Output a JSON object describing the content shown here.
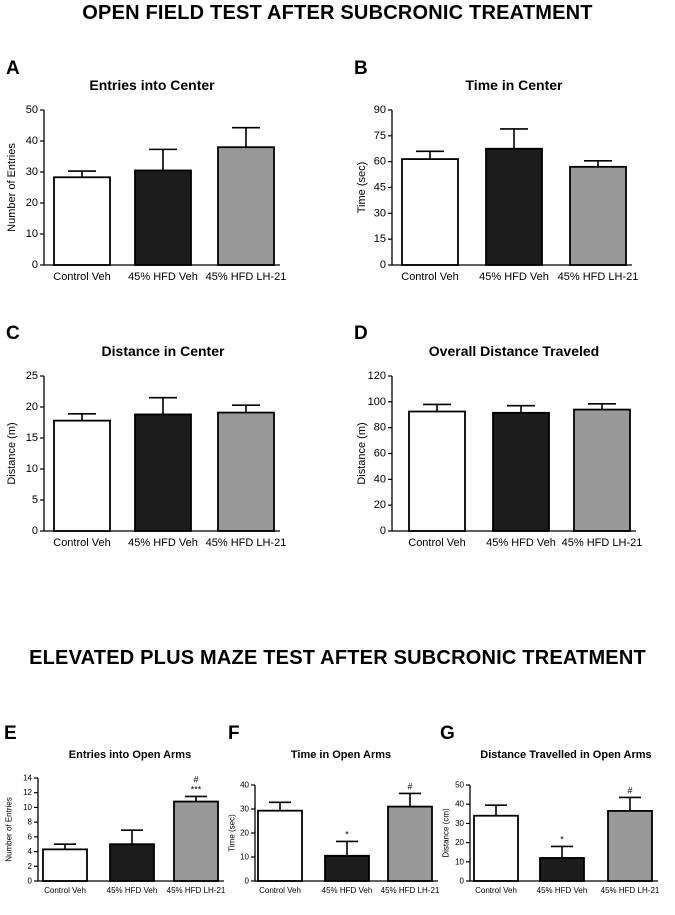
{
  "sections": {
    "open_field_title": "OPEN FIELD TEST AFTER SUBCRONIC TREATMENT",
    "plus_maze_title": "ELEVATED PLUS MAZE TEST AFTER SUBCRONIC TREATMENT"
  },
  "chart_data": [
    {
      "panel": "A",
      "type": "bar",
      "title": "Entries into Center",
      "xlabel": "",
      "ylabel": "Number of Entries",
      "categories": [
        "Control Veh",
        "45% HFD Veh",
        "45% HFD LH-21"
      ],
      "values": [
        28.3,
        30.5,
        38.0
      ],
      "errors": [
        2.0,
        6.8,
        6.3
      ],
      "annotations": [
        "",
        "",
        ""
      ],
      "ylim": [
        0,
        50
      ],
      "yticks": [
        0,
        10,
        20,
        30,
        40,
        50
      ],
      "bar_colors": [
        "#ffffff",
        "#1c1c1c",
        "#999999"
      ]
    },
    {
      "panel": "B",
      "type": "bar",
      "title": "Time in Center",
      "xlabel": "",
      "ylabel": "Time (sec)",
      "categories": [
        "Control Veh",
        "45% HFD Veh",
        "45% HFD LH-21"
      ],
      "values": [
        61.5,
        67.5,
        57.0
      ],
      "errors": [
        4.5,
        11.5,
        3.5
      ],
      "annotations": [
        "",
        "",
        ""
      ],
      "ylim": [
        0,
        90
      ],
      "yticks": [
        0,
        15,
        30,
        45,
        60,
        75,
        90
      ],
      "bar_colors": [
        "#ffffff",
        "#1c1c1c",
        "#999999"
      ]
    },
    {
      "panel": "C",
      "type": "bar",
      "title": "Distance in Center",
      "xlabel": "",
      "ylabel": "Distance (m)",
      "categories": [
        "Control Veh",
        "45% HFD Veh",
        "45% HFD LH-21"
      ],
      "values": [
        17.8,
        18.8,
        19.1
      ],
      "errors": [
        1.1,
        2.7,
        1.2
      ],
      "annotations": [
        "",
        "",
        ""
      ],
      "ylim": [
        0,
        25
      ],
      "yticks": [
        0,
        5,
        10,
        15,
        20,
        25
      ],
      "bar_colors": [
        "#ffffff",
        "#1c1c1c",
        "#999999"
      ]
    },
    {
      "panel": "D",
      "type": "bar",
      "title": "Overall Distance Traveled",
      "xlabel": "",
      "ylabel": "Distance (m)",
      "categories": [
        "Control Veh",
        "45% HFD Veh",
        "45% HFD LH-21"
      ],
      "values": [
        92.5,
        91.5,
        94.0
      ],
      "errors": [
        5.5,
        5.5,
        4.5
      ],
      "annotations": [
        "",
        "",
        ""
      ],
      "ylim": [
        0,
        120
      ],
      "yticks": [
        0,
        20,
        40,
        60,
        80,
        100,
        120
      ],
      "bar_colors": [
        "#ffffff",
        "#1c1c1c",
        "#999999"
      ]
    },
    {
      "panel": "E",
      "type": "bar",
      "title": "Entries into Open Arms",
      "xlabel": "",
      "ylabel": "Number of Entries",
      "categories": [
        "Control Veh",
        "45% HFD Veh",
        "45% HFD LH-21"
      ],
      "values": [
        4.3,
        5.0,
        10.8
      ],
      "errors": [
        0.7,
        1.9,
        0.7
      ],
      "annotations": [
        "",
        "",
        "#\n***"
      ],
      "ylim": [
        0,
        14
      ],
      "yticks": [
        0,
        2,
        4,
        6,
        8,
        10,
        12,
        14
      ],
      "bar_colors": [
        "#ffffff",
        "#1c1c1c",
        "#999999"
      ]
    },
    {
      "panel": "F",
      "type": "bar",
      "title": "Time in Open Arms",
      "xlabel": "",
      "ylabel": "Time (sec)",
      "categories": [
        "Control Veh",
        "45% HFD Veh",
        "45% HFD LH-21"
      ],
      "values": [
        29.3,
        10.5,
        31.0
      ],
      "errors": [
        3.5,
        6.0,
        5.5
      ],
      "annotations": [
        "",
        "*",
        "#"
      ],
      "ylim": [
        0,
        40
      ],
      "yticks": [
        0,
        10,
        20,
        30,
        40
      ],
      "bar_colors": [
        "#ffffff",
        "#1c1c1c",
        "#999999"
      ]
    },
    {
      "panel": "G",
      "type": "bar",
      "title": "Distance Travelled in Open Arms",
      "xlabel": "",
      "ylabel": "Distance (cm)",
      "categories": [
        "Control Veh",
        "45% HFD Veh",
        "45% HFD LH-21"
      ],
      "values": [
        34.0,
        12.0,
        36.5
      ],
      "errors": [
        5.5,
        6.0,
        7.0
      ],
      "annotations": [
        "",
        "*",
        "#"
      ],
      "ylim": [
        0,
        50
      ],
      "yticks": [
        0,
        10,
        20,
        30,
        40,
        50
      ],
      "bar_colors": [
        "#ffffff",
        "#1c1c1c",
        "#999999"
      ]
    }
  ]
}
